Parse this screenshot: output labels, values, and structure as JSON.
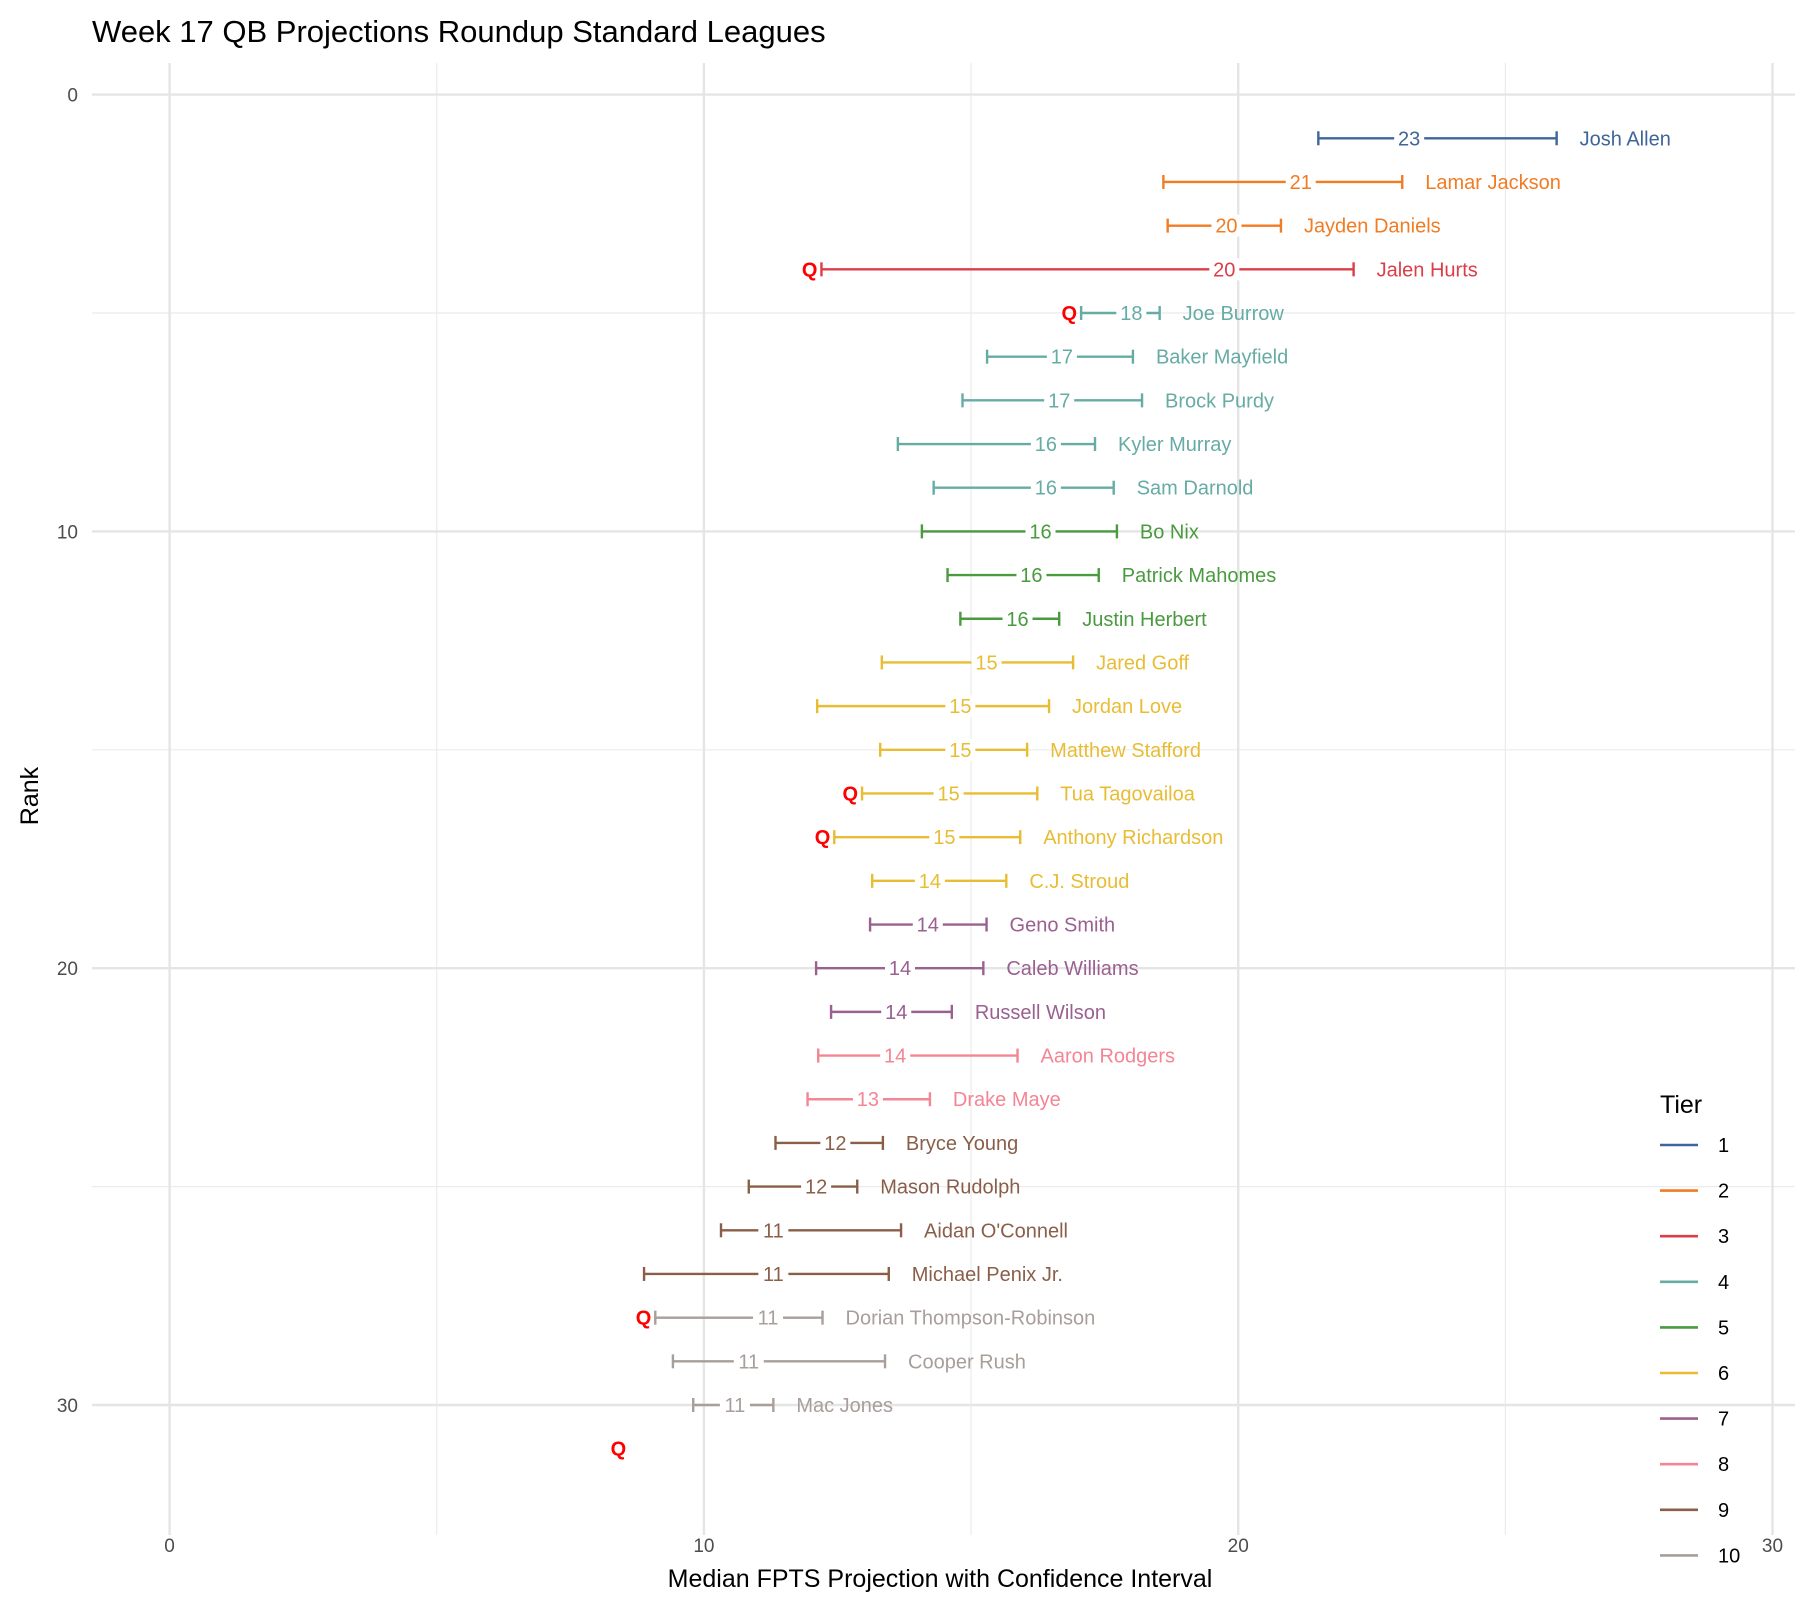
{
  "chart_data": {
    "type": "errorbar",
    "title": "Week 17 QB Projections Roundup Standard Leagues",
    "xlabel": "Median FPTS Projection with Confidence Interval",
    "ylabel": "Rank",
    "xlim": [
      -1.5,
      30.5
    ],
    "ylim": [
      32.5,
      -1
    ],
    "x_ticks": [
      "0",
      "10",
      "20",
      "30"
    ],
    "x_tick_values": [
      0,
      10,
      20,
      30
    ],
    "y_ticks": [
      "0",
      "10",
      "20",
      "30"
    ],
    "y_tick_values": [
      0,
      10,
      20,
      30
    ],
    "grid": true,
    "legend": {
      "title": "Tier",
      "placement": "right-bottom",
      "items": [
        "1",
        "2",
        "3",
        "4",
        "5",
        "6",
        "7",
        "8",
        "9",
        "10"
      ]
    },
    "tier_colors": {
      "1": "#3f6599",
      "2": "#f07c24",
      "3": "#dc3e48",
      "4": "#66aca5",
      "5": "#4a9a3f",
      "6": "#e8bd34",
      "7": "#9a6090",
      "8": "#f48594",
      "9": "#8a5f4a",
      "10": "#a89e9a"
    },
    "q_marker": "Q",
    "q_color": "#ff0000",
    "players": [
      {
        "rank": 1,
        "name": "Josh Allen",
        "tier": 1,
        "low": 21.5,
        "median": 23.2,
        "high": 25.96,
        "label": "23",
        "q": false
      },
      {
        "rank": 2,
        "name": "Lamar Jackson",
        "tier": 2,
        "low": 18.6,
        "median": 21.17,
        "high": 23.07,
        "label": "21",
        "q": false
      },
      {
        "rank": 3,
        "name": "Jayden Daniels",
        "tier": 2,
        "low": 18.68,
        "median": 19.78,
        "high": 20.8,
        "label": "20",
        "q": false
      },
      {
        "rank": 4,
        "name": "Jalen Hurts",
        "tier": 3,
        "low": 12.2,
        "median": 19.74,
        "high": 22.16,
        "label": "20",
        "q": true
      },
      {
        "rank": 5,
        "name": "Joe Burrow",
        "tier": 4,
        "low": 17.06,
        "median": 18.0,
        "high": 18.53,
        "label": "18",
        "q": true
      },
      {
        "rank": 6,
        "name": "Baker Mayfield",
        "tier": 4,
        "low": 15.3,
        "median": 16.7,
        "high": 18.03,
        "label": "17",
        "q": false
      },
      {
        "rank": 7,
        "name": "Brock Purdy",
        "tier": 4,
        "low": 14.84,
        "median": 16.65,
        "high": 18.2,
        "label": "17",
        "q": false
      },
      {
        "rank": 8,
        "name": "Kyler Murray",
        "tier": 4,
        "low": 13.63,
        "median": 16.4,
        "high": 17.32,
        "label": "16",
        "q": false
      },
      {
        "rank": 9,
        "name": "Sam Darnold",
        "tier": 4,
        "low": 14.3,
        "median": 16.4,
        "high": 17.67,
        "label": "16",
        "q": false
      },
      {
        "rank": 10,
        "name": "Bo Nix",
        "tier": 5,
        "low": 14.08,
        "median": 16.3,
        "high": 17.73,
        "label": "16",
        "q": false
      },
      {
        "rank": 11,
        "name": "Patrick Mahomes",
        "tier": 5,
        "low": 14.56,
        "median": 16.13,
        "high": 17.39,
        "label": "16",
        "q": false
      },
      {
        "rank": 12,
        "name": "Justin Herbert",
        "tier": 5,
        "low": 14.8,
        "median": 15.87,
        "high": 16.65,
        "label": "16",
        "q": false
      },
      {
        "rank": 13,
        "name": "Jared Goff",
        "tier": 6,
        "low": 13.33,
        "median": 15.29,
        "high": 16.91,
        "label": "15",
        "q": false
      },
      {
        "rank": 14,
        "name": "Jordan Love",
        "tier": 6,
        "low": 12.12,
        "median": 14.8,
        "high": 16.46,
        "label": "15",
        "q": false
      },
      {
        "rank": 15,
        "name": "Matthew Stafford",
        "tier": 6,
        "low": 13.3,
        "median": 14.8,
        "high": 16.05,
        "label": "15",
        "q": false
      },
      {
        "rank": 16,
        "name": "Tua Tagovailoa",
        "tier": 6,
        "low": 12.96,
        "median": 14.58,
        "high": 16.24,
        "label": "15",
        "q": true
      },
      {
        "rank": 17,
        "name": "Anthony Richardson",
        "tier": 6,
        "low": 12.44,
        "median": 14.5,
        "high": 15.92,
        "label": "15",
        "q": true
      },
      {
        "rank": 18,
        "name": "C.J. Stroud",
        "tier": 6,
        "low": 13.15,
        "median": 14.23,
        "high": 15.66,
        "label": "14",
        "q": false
      },
      {
        "rank": 19,
        "name": "Geno Smith",
        "tier": 7,
        "low": 13.11,
        "median": 14.19,
        "high": 15.29,
        "label": "14",
        "q": false
      },
      {
        "rank": 20,
        "name": "Caleb Williams",
        "tier": 7,
        "low": 12.1,
        "median": 13.67,
        "high": 15.23,
        "label": "14",
        "q": false
      },
      {
        "rank": 21,
        "name": "Russell Wilson",
        "tier": 7,
        "low": 12.38,
        "median": 13.6,
        "high": 14.64,
        "label": "14",
        "q": false
      },
      {
        "rank": 22,
        "name": "Aaron Rodgers",
        "tier": 8,
        "low": 12.14,
        "median": 13.58,
        "high": 15.87,
        "label": "14",
        "q": false
      },
      {
        "rank": 23,
        "name": "Drake Maye",
        "tier": 8,
        "low": 11.94,
        "median": 13.07,
        "high": 14.23,
        "label": "13",
        "q": false
      },
      {
        "rank": 24,
        "name": "Bryce Young",
        "tier": 9,
        "low": 11.34,
        "median": 12.46,
        "high": 13.35,
        "label": "12",
        "q": false
      },
      {
        "rank": 25,
        "name": "Mason Rudolph",
        "tier": 9,
        "low": 10.84,
        "median": 12.1,
        "high": 12.87,
        "label": "12",
        "q": false
      },
      {
        "rank": 26,
        "name": "Aidan O'Connell",
        "tier": 9,
        "low": 10.32,
        "median": 11.3,
        "high": 13.69,
        "label": "11",
        "q": false
      },
      {
        "rank": 27,
        "name": "Michael Penix Jr.",
        "tier": 9,
        "low": 8.88,
        "median": 11.3,
        "high": 13.46,
        "label": "11",
        "q": false
      },
      {
        "rank": 28,
        "name": "Dorian Thompson-Robinson",
        "tier": 10,
        "low": 9.09,
        "median": 11.2,
        "high": 12.22,
        "label": "11",
        "q": true
      },
      {
        "rank": 29,
        "name": "Cooper Rush",
        "tier": 10,
        "low": 9.42,
        "median": 10.84,
        "high": 13.39,
        "label": "11",
        "q": false
      },
      {
        "rank": 30,
        "name": "Mac Jones",
        "tier": 10,
        "low": 9.8,
        "median": 10.58,
        "high": 11.3,
        "label": "11",
        "q": false
      }
    ],
    "extra_q_markers": [
      {
        "rank": 31,
        "x": 8.4
      }
    ]
  }
}
